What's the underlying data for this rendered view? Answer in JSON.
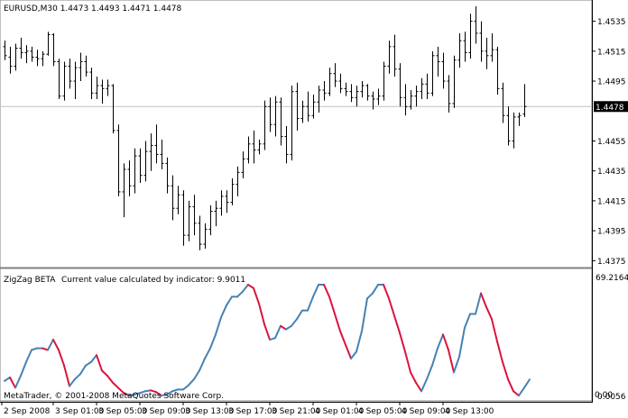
{
  "main_panel": {
    "symbol_line": "EURUSD,M30  1.4473 1.4493 1.4471 1.4478",
    "price_labels": [
      "1.4535",
      "1.4515",
      "1.4495",
      "1.4455",
      "1.4435",
      "1.4415",
      "1.4395",
      "1.4375"
    ],
    "price_values": [
      1.4535,
      1.4515,
      1.4495,
      1.4455,
      1.4435,
      1.4415,
      1.4395,
      1.4375
    ],
    "current_price_label": "1.4478",
    "current_price_value": 1.4478,
    "y_range": [
      1.4371,
      1.4548
    ],
    "bar_color": "#000000",
    "price_line_color": "#c0c0c0"
  },
  "indicator_panel": {
    "title": "ZigZag BETA",
    "info": "Current value calculated by indicator: 9.9011",
    "scale_top_label": "69.2164",
    "scale_bottom_label": "0.0056",
    "scale_bottom_overlay": "0.00",
    "y_range": [
      0,
      69.2164
    ],
    "rising_color": "#4682b4",
    "falling_color": "#dc143c"
  },
  "footer": {
    "copyright": "MetaTrader, © 2001-2008 MetaQuotes Software Corp."
  },
  "time_axis": {
    "labels": [
      "2 Sep 2008",
      "3 Sep 01:00",
      "3 Sep 05:00",
      "3 Sep 09:00",
      "3 Sep 13:00",
      "3 Sep 17:00",
      "3 Sep 21:00",
      "4 Sep 01:00",
      "4 Sep 05:00",
      "4 Sep 09:00",
      "4 Sep 13:00"
    ]
  },
  "chart_data": [
    {
      "type": "ohlc",
      "title": "EURUSD,M30",
      "y_range": [
        1.4371,
        1.4548
      ],
      "bars": [
        [
          1.4518,
          1.4522,
          1.4509,
          1.4512
        ],
        [
          1.4511,
          1.4518,
          1.45,
          1.4505
        ],
        [
          1.4505,
          1.452,
          1.4502,
          1.4517
        ],
        [
          1.4517,
          1.4524,
          1.451,
          1.4514
        ],
        [
          1.4514,
          1.4519,
          1.4507,
          1.4515
        ],
        [
          1.4515,
          1.4518,
          1.4508,
          1.4511
        ],
        [
          1.4511,
          1.4516,
          1.4505,
          1.451
        ],
        [
          1.451,
          1.4515,
          1.4505,
          1.4513
        ],
        [
          1.4513,
          1.4528,
          1.4512,
          1.4526
        ],
        [
          1.4526,
          1.4527,
          1.4505,
          1.4508
        ],
        [
          1.4508,
          1.451,
          1.4483,
          1.4485
        ],
        [
          1.4485,
          1.4508,
          1.4482,
          1.4505
        ],
        [
          1.4505,
          1.451,
          1.449,
          1.4495
        ],
        [
          1.4495,
          1.4508,
          1.4483,
          1.4504
        ],
        [
          1.4504,
          1.4514,
          1.4495,
          1.4508
        ],
        [
          1.4508,
          1.4512,
          1.4498,
          1.4501
        ],
        [
          1.4501,
          1.4504,
          1.4483,
          1.4487
        ],
        [
          1.4487,
          1.4498,
          1.4483,
          1.4492
        ],
        [
          1.4492,
          1.4496,
          1.448,
          1.449
        ],
        [
          1.449,
          1.4496,
          1.4485,
          1.4492
        ],
        [
          1.4492,
          1.4493,
          1.446,
          1.4462
        ],
        [
          1.4462,
          1.4466,
          1.4418,
          1.4421
        ],
        [
          1.4421,
          1.444,
          1.4404,
          1.4436
        ],
        [
          1.4436,
          1.4442,
          1.4418,
          1.4425
        ],
        [
          1.4425,
          1.445,
          1.442,
          1.4445
        ],
        [
          1.4445,
          1.445,
          1.4427,
          1.4432
        ],
        [
          1.4432,
          1.4455,
          1.4428,
          1.4448
        ],
        [
          1.4448,
          1.446,
          1.4435,
          1.4452
        ],
        [
          1.4452,
          1.4466,
          1.444,
          1.4446
        ],
        [
          1.4446,
          1.4456,
          1.4436,
          1.444
        ],
        [
          1.444,
          1.4444,
          1.442,
          1.4425
        ],
        [
          1.4425,
          1.4432,
          1.4402,
          1.441
        ],
        [
          1.441,
          1.4425,
          1.4406,
          1.4419
        ],
        [
          1.4419,
          1.4422,
          1.4385,
          1.4392
        ],
        [
          1.4392,
          1.4415,
          1.4388,
          1.4411
        ],
        [
          1.4411,
          1.4419,
          1.4392,
          1.44
        ],
        [
          1.44,
          1.4405,
          1.4382,
          1.4386
        ],
        [
          1.4386,
          1.44,
          1.4383,
          1.4396
        ],
        [
          1.4396,
          1.4412,
          1.4392,
          1.4408
        ],
        [
          1.4408,
          1.4415,
          1.4398,
          1.441
        ],
        [
          1.441,
          1.4422,
          1.4405,
          1.4418
        ],
        [
          1.4418,
          1.4422,
          1.4407,
          1.4414
        ],
        [
          1.4414,
          1.443,
          1.4412,
          1.4426
        ],
        [
          1.4426,
          1.4438,
          1.4418,
          1.4434
        ],
        [
          1.4434,
          1.4448,
          1.443,
          1.4443
        ],
        [
          1.4443,
          1.4458,
          1.444,
          1.4453
        ],
        [
          1.4453,
          1.4462,
          1.444,
          1.4449
        ],
        [
          1.4449,
          1.4456,
          1.4446,
          1.4453
        ],
        [
          1.4453,
          1.4482,
          1.4449,
          1.4478
        ],
        [
          1.4478,
          1.4484,
          1.4461,
          1.4466
        ],
        [
          1.4466,
          1.4485,
          1.4458,
          1.4481
        ],
        [
          1.4481,
          1.4484,
          1.4452,
          1.4458
        ],
        [
          1.4458,
          1.4465,
          1.444,
          1.4446
        ],
        [
          1.4446,
          1.4492,
          1.4442,
          1.4488
        ],
        [
          1.4488,
          1.4494,
          1.4462,
          1.447
        ],
        [
          1.447,
          1.4482,
          1.4467,
          1.4478
        ],
        [
          1.4478,
          1.4488,
          1.4468,
          1.4472
        ],
        [
          1.4472,
          1.4486,
          1.447,
          1.4481
        ],
        [
          1.4481,
          1.4492,
          1.4474,
          1.4489
        ],
        [
          1.4489,
          1.4495,
          1.4482,
          1.4487
        ],
        [
          1.4487,
          1.4504,
          1.4485,
          1.45
        ],
        [
          1.45,
          1.4507,
          1.4491,
          1.4495
        ],
        [
          1.4495,
          1.45,
          1.4487,
          1.449
        ],
        [
          1.449,
          1.4494,
          1.4485,
          1.4488
        ],
        [
          1.4488,
          1.4493,
          1.4481,
          1.4484
        ],
        [
          1.4484,
          1.4492,
          1.4478,
          1.4488
        ],
        [
          1.4488,
          1.4495,
          1.4484,
          1.4492
        ],
        [
          1.4492,
          1.4493,
          1.4482,
          1.4485
        ],
        [
          1.4485,
          1.4488,
          1.4476,
          1.4483
        ],
        [
          1.4483,
          1.449,
          1.4479,
          1.4485
        ],
        [
          1.4485,
          1.4508,
          1.4482,
          1.4505
        ],
        [
          1.4505,
          1.4522,
          1.45,
          1.4518
        ],
        [
          1.4518,
          1.4526,
          1.4498,
          1.4503
        ],
        [
          1.4503,
          1.4507,
          1.4478,
          1.4484
        ],
        [
          1.4484,
          1.4493,
          1.4472,
          1.4478
        ],
        [
          1.4478,
          1.4489,
          1.4476,
          1.4485
        ],
        [
          1.4485,
          1.4492,
          1.4478,
          1.4488
        ],
        [
          1.4488,
          1.4497,
          1.4483,
          1.4493
        ],
        [
          1.4493,
          1.45,
          1.4483,
          1.4487
        ],
        [
          1.4487,
          1.4515,
          1.4485,
          1.4512
        ],
        [
          1.4512,
          1.4518,
          1.4498,
          1.4508
        ],
        [
          1.4508,
          1.4514,
          1.449,
          1.4495
        ],
        [
          1.4495,
          1.4499,
          1.4474,
          1.448
        ],
        [
          1.448,
          1.4512,
          1.4477,
          1.4509
        ],
        [
          1.4509,
          1.4527,
          1.4504,
          1.4522
        ],
        [
          1.4522,
          1.4528,
          1.4508,
          1.4514
        ],
        [
          1.4514,
          1.454,
          1.451,
          1.4535
        ],
        [
          1.4535,
          1.4545,
          1.452,
          1.4527
        ],
        [
          1.4527,
          1.4535,
          1.4508,
          1.4515
        ],
        [
          1.4515,
          1.4524,
          1.4503,
          1.4512
        ],
        [
          1.4512,
          1.4527,
          1.4508,
          1.4516
        ],
        [
          1.4516,
          1.4518,
          1.4486,
          1.449
        ],
        [
          1.449,
          1.4494,
          1.4467,
          1.4472
        ],
        [
          1.4472,
          1.4478,
          1.4452,
          1.4455
        ],
        [
          1.4455,
          1.4474,
          1.445,
          1.4471
        ],
        [
          1.4471,
          1.4474,
          1.4465,
          1.4472
        ],
        [
          1.4473,
          1.4493,
          1.4471,
          1.4478
        ]
      ]
    },
    {
      "type": "line",
      "title": "ZigZag BETA",
      "y_range": [
        0,
        69.2164
      ],
      "values": [
        9.0,
        11.0,
        5.0,
        12.0,
        20.0,
        27.0,
        28.0,
        28.0,
        27.0,
        33.0,
        27.0,
        18.0,
        6.0,
        10.0,
        13.0,
        18.0,
        20.0,
        24.0,
        15.0,
        12.0,
        8.0,
        5.0,
        2.0,
        0.5,
        1.0,
        2.0,
        3.0,
        3.5,
        2.5,
        0.5,
        1.0,
        3.0,
        4.0,
        4.0,
        6.5,
        10.0,
        15.0,
        22.0,
        28.0,
        36.0,
        46.0,
        53.0,
        58.0,
        58.0,
        61.0,
        65.0,
        63.0,
        54.0,
        42.0,
        33.0,
        34.0,
        41.0,
        39.0,
        41.0,
        45.0,
        50.0,
        50.0,
        58.0,
        65.0,
        65.0,
        58.0,
        48.0,
        38.0,
        30.0,
        22.0,
        26.0,
        38.0,
        57.0,
        60.0,
        65.0,
        65.0,
        57.0,
        47.0,
        37.0,
        26.0,
        14.0,
        8.0,
        3.0,
        10.0,
        18.0,
        28.0,
        36.0,
        27.0,
        14.0,
        23.0,
        40.0,
        48.0,
        48.0,
        60.0,
        52.0,
        45.0,
        32.0,
        20.0,
        10.0,
        3.0,
        0.5,
        5.0,
        9.9011
      ]
    }
  ]
}
